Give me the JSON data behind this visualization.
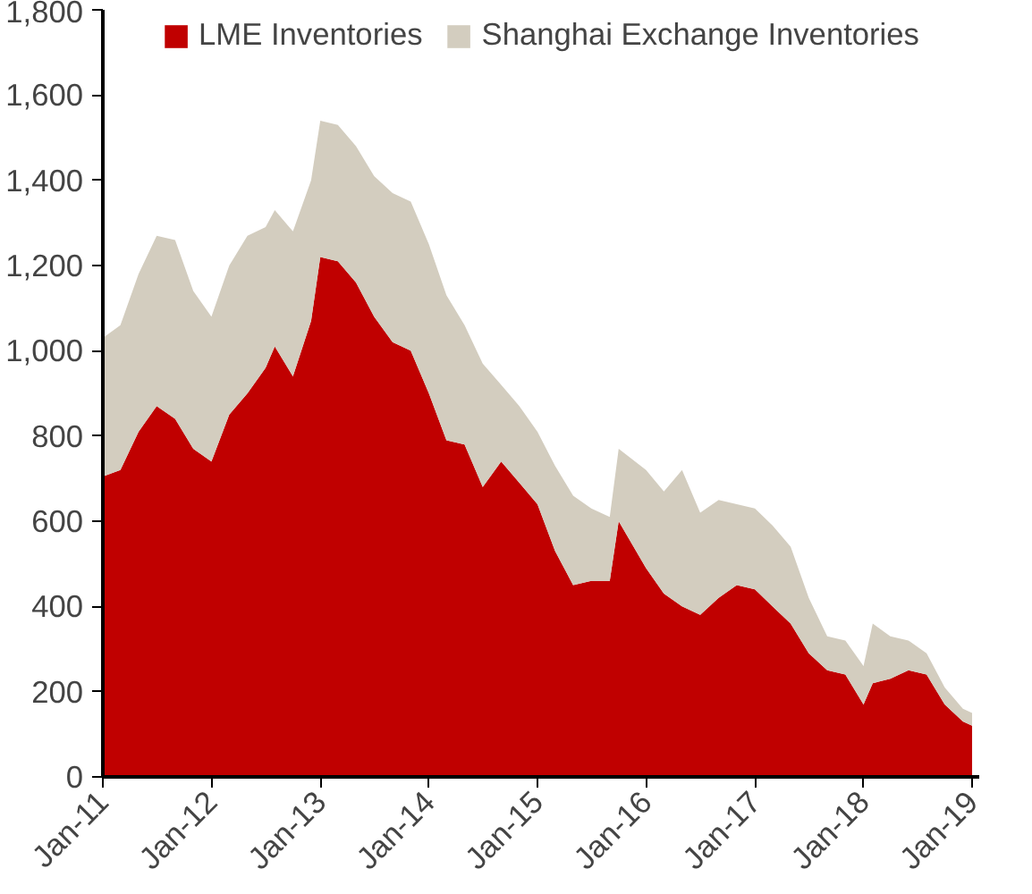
{
  "chart_data": {
    "type": "area",
    "stacked": true,
    "legend": "top",
    "grid": false,
    "x": [
      "2011-01",
      "2011-03",
      "2011-05",
      "2011-07",
      "2011-09",
      "2011-11",
      "2012-01",
      "2012-03",
      "2012-05",
      "2012-07",
      "2012-08",
      "2012-10",
      "2012-12",
      "2013-01",
      "2013-03",
      "2013-05",
      "2013-07",
      "2013-09",
      "2013-11",
      "2014-01",
      "2014-03",
      "2014-05",
      "2014-07",
      "2014-09",
      "2014-11",
      "2015-01",
      "2015-03",
      "2015-05",
      "2015-07",
      "2015-09",
      "2015-10",
      "2016-01",
      "2016-03",
      "2016-05",
      "2016-07",
      "2016-09",
      "2016-11",
      "2017-01",
      "2017-03",
      "2017-05",
      "2017-07",
      "2017-09",
      "2017-11",
      "2018-01",
      "2018-02",
      "2018-04",
      "2018-06",
      "2018-08",
      "2018-10",
      "2018-12",
      "2019-01"
    ],
    "series": [
      {
        "name": "LME Inventories",
        "color": "#c00000",
        "values": [
          705,
          720,
          810,
          870,
          840,
          770,
          740,
          850,
          900,
          960,
          1010,
          940,
          1070,
          1220,
          1210,
          1160,
          1080,
          1020,
          1000,
          900,
          790,
          780,
          680,
          740,
          690,
          640,
          530,
          450,
          460,
          460,
          600,
          490,
          430,
          400,
          380,
          420,
          450,
          440,
          400,
          360,
          290,
          250,
          240,
          170,
          220,
          230,
          250,
          240,
          170,
          130,
          120
        ]
      },
      {
        "name": "Shanghai Exchange Inventories",
        "color": "#d3cdbf",
        "values": [
          325,
          340,
          370,
          400,
          420,
          370,
          340,
          350,
          370,
          330,
          320,
          340,
          330,
          320,
          320,
          320,
          330,
          350,
          350,
          350,
          340,
          280,
          290,
          180,
          180,
          170,
          200,
          210,
          170,
          150,
          170,
          230,
          240,
          320,
          240,
          230,
          190,
          190,
          190,
          180,
          130,
          80,
          80,
          90,
          140,
          100,
          70,
          50,
          40,
          30,
          30
        ]
      }
    ],
    "xlim": [
      "2011-01-01",
      "2019-01-25"
    ],
    "xticks": [
      {
        "value": "2011-01-01",
        "label": "Jan-11"
      },
      {
        "value": "2012-01-01",
        "label": "Jan-12"
      },
      {
        "value": "2013-01-01",
        "label": "Jan-13"
      },
      {
        "value": "2014-01-01",
        "label": "Jan-14"
      },
      {
        "value": "2015-01-01",
        "label": "Jan-15"
      },
      {
        "value": "2016-01-01",
        "label": "Jan-16"
      },
      {
        "value": "2017-01-01",
        "label": "Jan-17"
      },
      {
        "value": "2018-01-01",
        "label": "Jan-18"
      },
      {
        "value": "2019-01-01",
        "label": "Jan-19"
      }
    ],
    "ylim": [
      0,
      1800
    ],
    "yticks": [
      0,
      200,
      400,
      600,
      800,
      {
        "value": 1000,
        "label": "1,000"
      },
      {
        "value": 1200,
        "label": "1,200"
      },
      {
        "value": 1400,
        "label": "1,400"
      },
      {
        "value": 1600,
        "label": "1,600"
      },
      {
        "value": 1800,
        "label": "1,800"
      }
    ]
  }
}
